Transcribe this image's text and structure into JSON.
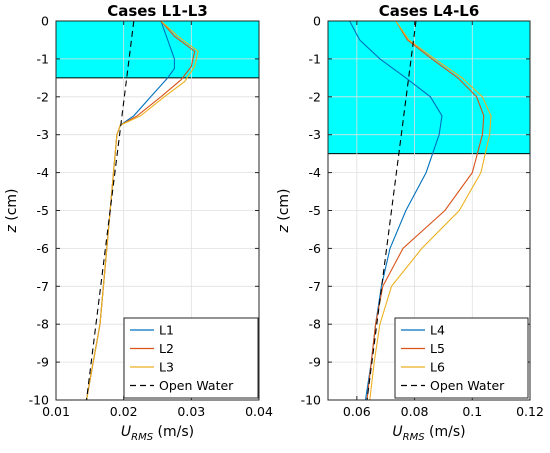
{
  "chart_data": [
    {
      "type": "line",
      "title": "Cases L1-L3",
      "xlabel": {
        "main": "U",
        "sub": "RMS",
        "unit": " (m/s)"
      },
      "ylabel": {
        "main": "z",
        "unit": " (cm)"
      },
      "xlim": [
        0.01,
        0.04
      ],
      "ylim": [
        -10,
        0
      ],
      "xticks": [
        "0.01",
        "0.02",
        "0.03",
        "0.04"
      ],
      "yticks": [
        "0",
        "-1",
        "-2",
        "-3",
        "-4",
        "-5",
        "-6",
        "-7",
        "-8",
        "-9",
        "-10"
      ],
      "grid": true,
      "legend_position": "bottom-right",
      "shaded_region": {
        "z_top": 0,
        "z_bottom": -1.5,
        "color": "#00ffff"
      },
      "series": [
        {
          "name": "L1",
          "color": "#0072bd",
          "dash": false,
          "x": [
            0.0255,
            0.0265,
            0.0275,
            0.0275,
            0.0265,
            0.024,
            0.0215,
            0.0195,
            0.019,
            0.0185,
            0.0175,
            0.0165,
            0.0155,
            0.0145
          ],
          "y": [
            0,
            -0.5,
            -1.0,
            -1.25,
            -1.5,
            -2.0,
            -2.5,
            -2.75,
            -3.0,
            -4.0,
            -6.0,
            -8.0,
            -9.0,
            -10.0
          ]
        },
        {
          "name": "L2",
          "color": "#d95319",
          "dash": false,
          "x": [
            0.0255,
            0.0275,
            0.0305,
            0.03,
            0.0285,
            0.0255,
            0.022,
            0.0195,
            0.019,
            0.0185,
            0.0175,
            0.0165,
            0.0155,
            0.0145
          ],
          "y": [
            0,
            -0.4,
            -0.8,
            -1.2,
            -1.55,
            -2.0,
            -2.5,
            -2.75,
            -3.0,
            -4.0,
            -6.0,
            -8.0,
            -9.0,
            -10.0
          ]
        },
        {
          "name": "L3",
          "color": "#edb120",
          "dash": false,
          "x": [
            0.0255,
            0.028,
            0.031,
            0.0305,
            0.029,
            0.026,
            0.0225,
            0.0195,
            0.019,
            0.0185,
            0.0175,
            0.0165,
            0.0155,
            0.0145
          ],
          "y": [
            0,
            -0.4,
            -0.8,
            -1.2,
            -1.6,
            -2.0,
            -2.5,
            -2.75,
            -3.0,
            -4.0,
            -6.0,
            -8.0,
            -9.0,
            -10.0
          ]
        },
        {
          "name": "Open Water",
          "color": "#000000",
          "dash": true,
          "x": [
            0.0215,
            0.0145
          ],
          "y": [
            0,
            -10
          ]
        }
      ]
    },
    {
      "type": "line",
      "title": "Cases L4-L6",
      "xlabel": {
        "main": "U",
        "sub": "RMS",
        "unit": " (m/s)"
      },
      "ylabel": {
        "main": "z",
        "unit": " (cm)"
      },
      "xlim": [
        0.05,
        0.12
      ],
      "ylim": [
        -10,
        0
      ],
      "xticks": [
        "0.06",
        "0.08",
        "0.1",
        "0.12"
      ],
      "yticks": [
        "0",
        "-1",
        "-2",
        "-3",
        "-4",
        "-5",
        "-6",
        "-7",
        "-8",
        "-9",
        "-10"
      ],
      "grid": true,
      "legend_position": "bottom-right",
      "shaded_region": {
        "z_top": 0,
        "z_bottom": -3.5,
        "color": "#00ffff"
      },
      "series": [
        {
          "name": "L4",
          "color": "#0072bd",
          "dash": false,
          "x": [
            0.0575,
            0.061,
            0.068,
            0.077,
            0.0855,
            0.0895,
            0.0885,
            0.084,
            0.077,
            0.0715,
            0.0685,
            0.0665,
            0.065,
            0.063
          ],
          "y": [
            0,
            -0.5,
            -1.0,
            -1.5,
            -2.0,
            -2.5,
            -3.0,
            -4.0,
            -5.0,
            -6.0,
            -7.0,
            -8.0,
            -9.0,
            -10.0
          ]
        },
        {
          "name": "L5",
          "color": "#d95319",
          "dash": false,
          "x": [
            0.0735,
            0.0775,
            0.086,
            0.095,
            0.1015,
            0.104,
            0.1035,
            0.1,
            0.0905,
            0.076,
            0.069,
            0.0665,
            0.065,
            0.0635
          ],
          "y": [
            0,
            -0.5,
            -1.0,
            -1.5,
            -2.0,
            -2.5,
            -3.0,
            -4.0,
            -5.0,
            -6.0,
            -7.0,
            -8.0,
            -9.0,
            -10.0
          ]
        },
        {
          "name": "L6",
          "color": "#edb120",
          "dash": false,
          "x": [
            0.0735,
            0.078,
            0.087,
            0.0965,
            0.1035,
            0.1065,
            0.106,
            0.103,
            0.0955,
            0.0825,
            0.072,
            0.068,
            0.066,
            0.0645
          ],
          "y": [
            0,
            -0.5,
            -1.0,
            -1.5,
            -2.0,
            -2.5,
            -3.0,
            -4.0,
            -5.0,
            -6.0,
            -7.0,
            -8.0,
            -9.0,
            -10.0
          ]
        },
        {
          "name": "Open Water",
          "color": "#000000",
          "dash": true,
          "x": [
            0.0805,
            0.0635
          ],
          "y": [
            0,
            -10
          ]
        }
      ]
    }
  ]
}
